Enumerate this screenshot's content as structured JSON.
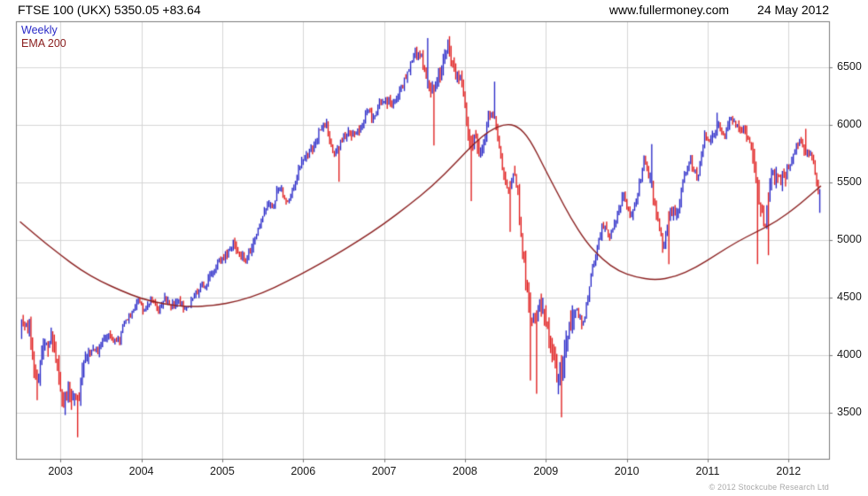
{
  "header": {
    "title": "FTSE 100 (UKX) 5350.05 +83.64",
    "website": "www.fullermoney.com",
    "date": "24 May 2012"
  },
  "legend": {
    "weekly": "Weekly",
    "ema": "EMA 200"
  },
  "footer": {
    "copyright": "© 2012 Stockcube Research Ltd"
  },
  "colors": {
    "up_bar": "#2a2ac8",
    "down_bar": "#e01d1d",
    "ema_line": "#8b2020",
    "grid": "#d6d6d6",
    "frame": "#7a7a7a",
    "axis_text": "#1a1a1a",
    "header_text": "#000000",
    "copyright_text": "#a8a8a8",
    "background": "#ffffff"
  },
  "chart_data": {
    "type": "bar",
    "subtype": "weekly-high-low-range-bars-with-ema-overlay",
    "title": "FTSE 100 (UKX) Weekly with EMA 200",
    "instrument": "FTSE 100 (UKX)",
    "timeframe": "Weekly",
    "overlay": "EMA 200",
    "last_close": 5350.05,
    "last_change": 83.64,
    "grid": true,
    "legend_position": "top-left",
    "x_domain": [
      2002.45,
      2012.5
    ],
    "y_domain": [
      3100,
      6900
    ],
    "y_ticks": [
      3500,
      4000,
      4500,
      5000,
      5500,
      6000,
      6500
    ],
    "x_ticks": [
      2003,
      2004,
      2005,
      2006,
      2007,
      2008,
      2009,
      2010,
      2011,
      2012
    ],
    "monthly_closes": {
      "t_start": 2002.54,
      "step_years": 0.0833333,
      "values": [
        4246,
        4227,
        3722,
        4040,
        4169,
        3940,
        3567,
        3655,
        3613,
        3926,
        4048,
        4031,
        4157,
        4161,
        4091,
        4287,
        4342,
        4477,
        4390,
        4492,
        4386,
        4490,
        4430,
        4464,
        4413,
        4459,
        4571,
        4624,
        4703,
        4814,
        4852,
        4969,
        4894,
        4801,
        4964,
        5113,
        5282,
        5297,
        5478,
        5317,
        5423,
        5619,
        5760,
        5792,
        5965,
        6023,
        5723,
        5833,
        5928,
        5906,
        5961,
        6129,
        6049,
        6221,
        6204,
        6172,
        6308,
        6449,
        6621,
        6608,
        6360,
        6303,
        6467,
        6722,
        6432,
        6457,
        5880,
        5884,
        5702,
        6087,
        6054,
        5626,
        5412,
        5637,
        4902,
        4377,
        4288,
        4434,
        4150,
        3830,
        3926,
        4244,
        4418,
        4249,
        4608,
        4909,
        5134,
        5045,
        5191,
        5413,
        5189,
        5355,
        5680,
        5553,
        5188,
        4917,
        5258,
        5225,
        5549,
        5675,
        5528,
        5900,
        5863,
        5994,
        5909,
        6070,
        5990,
        5946,
        5815,
        5395,
        5128,
        5544,
        5505,
        5572,
        5682,
        5871,
        5768,
        5738,
        5350
      ]
    },
    "spike_lows": [
      [
        2002.72,
        3609
      ],
      [
        2003.06,
        3480
      ],
      [
        2003.21,
        3287
      ],
      [
        2006.44,
        5506
      ],
      [
        2007.62,
        5821
      ],
      [
        2008.07,
        5338
      ],
      [
        2008.56,
        5071
      ],
      [
        2008.8,
        3780
      ],
      [
        2008.89,
        3665
      ],
      [
        2009.19,
        3460
      ],
      [
        2010.52,
        4790
      ],
      [
        2011.62,
        4791
      ],
      [
        2011.75,
        4868
      ]
    ],
    "spike_highs": [
      [
        2007.53,
        6754
      ],
      [
        2007.8,
        6730
      ],
      [
        2008.36,
        6376
      ],
      [
        2010.3,
        5833
      ],
      [
        2011.12,
        6106
      ],
      [
        2012.22,
        5966
      ]
    ],
    "volatility_windows": [
      [
        2002.5,
        2003.35,
        1.2
      ],
      [
        2007.55,
        2008.25,
        0.6
      ],
      [
        2008.6,
        2009.35,
        1.7
      ],
      [
        2010.28,
        2010.68,
        0.5
      ],
      [
        2011.55,
        2011.98,
        0.8
      ]
    ],
    "ema_line": [
      [
        2002.5,
        5160
      ],
      [
        2002.75,
        5010
      ],
      [
        2003.0,
        4870
      ],
      [
        2003.25,
        4740
      ],
      [
        2003.5,
        4640
      ],
      [
        2003.75,
        4560
      ],
      [
        2004.0,
        4490
      ],
      [
        2004.3,
        4440
      ],
      [
        2004.6,
        4420
      ],
      [
        2004.9,
        4430
      ],
      [
        2005.2,
        4470
      ],
      [
        2005.5,
        4540
      ],
      [
        2005.8,
        4640
      ],
      [
        2006.1,
        4750
      ],
      [
        2006.4,
        4870
      ],
      [
        2006.7,
        5000
      ],
      [
        2007.0,
        5140
      ],
      [
        2007.3,
        5300
      ],
      [
        2007.6,
        5470
      ],
      [
        2007.9,
        5680
      ],
      [
        2008.1,
        5830
      ],
      [
        2008.3,
        5950
      ],
      [
        2008.5,
        6010
      ],
      [
        2008.65,
        5990
      ],
      [
        2008.8,
        5880
      ],
      [
        2009.0,
        5600
      ],
      [
        2009.15,
        5400
      ],
      [
        2009.3,
        5200
      ],
      [
        2009.5,
        4980
      ],
      [
        2009.7,
        4830
      ],
      [
        2009.9,
        4730
      ],
      [
        2010.1,
        4680
      ],
      [
        2010.35,
        4650
      ],
      [
        2010.6,
        4680
      ],
      [
        2010.85,
        4760
      ],
      [
        2011.1,
        4870
      ],
      [
        2011.35,
        4980
      ],
      [
        2011.6,
        5070
      ],
      [
        2011.85,
        5160
      ],
      [
        2012.1,
        5290
      ],
      [
        2012.25,
        5380
      ],
      [
        2012.4,
        5470
      ]
    ],
    "weeks": {
      "t_first": 2002.52,
      "t_last": 2012.39,
      "step_years": 0.0192308
    }
  }
}
